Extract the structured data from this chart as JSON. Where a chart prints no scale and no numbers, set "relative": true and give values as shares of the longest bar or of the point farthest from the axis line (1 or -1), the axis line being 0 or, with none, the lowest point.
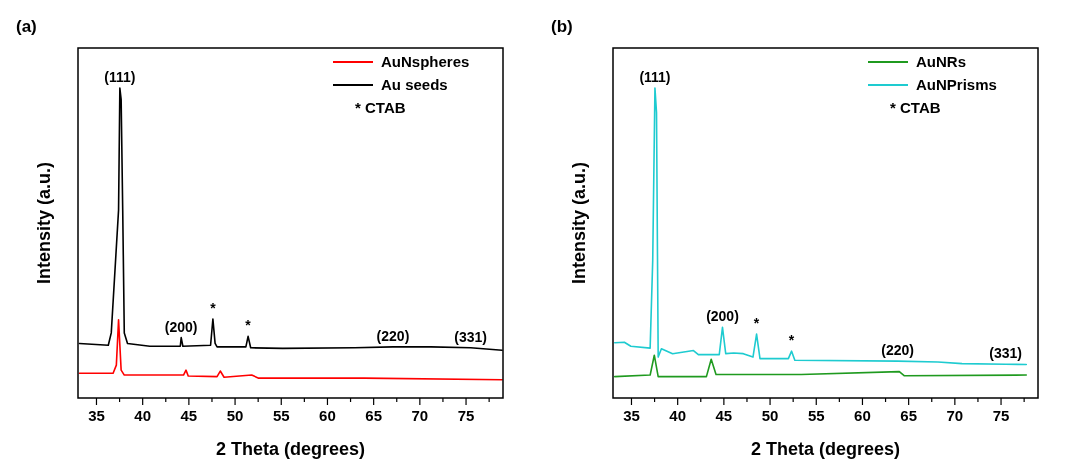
{
  "chart_data": [
    {
      "type": "line",
      "title": "(a)",
      "xlabel": "2 Theta (degrees)",
      "ylabel": "Intensity (a.u.)",
      "relative": true,
      "tick_labels": "x",
      "legend": "top right",
      "xlim": [
        33,
        79
      ],
      "xticks": [
        35,
        {
          "value": 37.5,
          "label": null
        },
        40,
        {
          "value": 42.5,
          "label": null
        },
        45,
        {
          "value": 47.5,
          "label": null
        },
        50,
        {
          "value": 52.5,
          "label": null
        },
        55,
        {
          "value": 57.5,
          "label": null
        },
        60,
        {
          "value": 62.5,
          "label": null
        },
        65,
        {
          "value": 67.5,
          "label": null
        },
        70,
        {
          "value": 72.5,
          "label": null
        },
        75,
        {
          "value": 77.5,
          "label": null
        }
      ],
      "series": [
        {
          "name": "AuNspheres",
          "color": "#ff0000",
          "x": [
            33.16,
            36.8,
            37.15,
            37.39,
            37.67,
            38.01,
            44.42,
            44.69,
            44.93,
            48.05,
            48.4,
            48.81,
            51.8,
            52.55,
            63.97,
            78.9
          ],
          "values": [
            0.08,
            0.08,
            0.106,
            0.252,
            0.09,
            0.074,
            0.074,
            0.09,
            0.071,
            0.069,
            0.087,
            0.067,
            0.074,
            0.064,
            0.064,
            0.059
          ]
        },
        {
          "name": "Au seeds",
          "color": "#000000",
          "x": [
            33.16,
            36.28,
            36.6,
            37.39,
            37.53,
            37.67,
            37.84,
            38.01,
            38.36,
            40.78,
            44.07,
            44.17,
            44.35,
            47.35,
            47.6,
            47.84,
            48.05,
            51.17,
            51.41,
            51.69,
            55.15,
            62.94,
            67.09,
            71.2,
            75.5,
            78.9
          ],
          "values": [
            0.176,
            0.17,
            0.21,
            0.606,
            1.0,
            0.963,
            0.606,
            0.21,
            0.176,
            0.167,
            0.167,
            0.195,
            0.167,
            0.17,
            0.255,
            0.176,
            0.165,
            0.165,
            0.199,
            0.162,
            0.16,
            0.162,
            0.165,
            0.165,
            0.162,
            0.154
          ]
        }
      ],
      "annotations": [
        {
          "text": "(111)",
          "x": 37.53,
          "y": 1.0
        },
        {
          "text": "(200)",
          "x": 44.17,
          "y": 0.195
        },
        {
          "text": "*",
          "x": 47.6,
          "y": 0.255
        },
        {
          "text": "*",
          "x": 51.41,
          "y": 0.199
        },
        {
          "text": "(220)",
          "x": 67.09,
          "y": 0.165
        },
        {
          "text": "(331)",
          "x": 75.5,
          "y": 0.162
        },
        "* CTAB"
      ]
    },
    {
      "type": "line",
      "title": "(b)",
      "xlabel": "2 Theta (degrees)",
      "ylabel": "Intensity (a.u.)",
      "relative": true,
      "tick_labels": "x",
      "legend": "top right",
      "xlim": [
        33,
        79
      ],
      "xticks": [
        35,
        {
          "value": 37.5,
          "label": null
        },
        40,
        {
          "value": 42.5,
          "label": null
        },
        45,
        {
          "value": 47.5,
          "label": null
        },
        50,
        {
          "value": 52.5,
          "label": null
        },
        55,
        {
          "value": 57.5,
          "label": null
        },
        60,
        {
          "value": 62.5,
          "label": null
        },
        65,
        {
          "value": 67.5,
          "label": null
        },
        70,
        {
          "value": 72.5,
          "label": null
        },
        75,
        {
          "value": 77.5,
          "label": null
        }
      ],
      "series": [
        {
          "name": "AuNRs",
          "color": "#1f9a1f",
          "x": [
            33.19,
            37.02,
            37.47,
            37.89,
            43.11,
            43.63,
            44.15,
            53.37,
            63.99,
            64.51,
            77.73
          ],
          "values": [
            0.069,
            0.074,
            0.138,
            0.069,
            0.069,
            0.125,
            0.076,
            0.076,
            0.085,
            0.072,
            0.074
          ]
        },
        {
          "name": "AuNPrisms",
          "color": "#1ecbd0",
          "x": [
            33.19,
            34.23,
            34.93,
            37.02,
            37.3,
            37.54,
            37.71,
            37.89,
            38.24,
            39.45,
            41.71,
            42.24,
            44.5,
            44.85,
            45.2,
            46.07,
            47.1,
            48.15,
            48.54,
            48.91,
            51.98,
            52.33,
            52.68,
            63.81,
            68.17,
            70.78,
            75.5,
            77.73
          ],
          "values": [
            0.178,
            0.18,
            0.167,
            0.161,
            0.444,
            1.0,
            0.921,
            0.132,
            0.159,
            0.143,
            0.153,
            0.14,
            0.14,
            0.228,
            0.143,
            0.145,
            0.143,
            0.132,
            0.206,
            0.127,
            0.127,
            0.151,
            0.122,
            0.119,
            0.116,
            0.111,
            0.109,
            0.108
          ]
        }
      ],
      "annotations": [
        {
          "text": "(111)",
          "x": 37.54,
          "y": 1.0
        },
        {
          "text": "(200)",
          "x": 44.85,
          "y": 0.228
        },
        {
          "text": "*",
          "x": 48.54,
          "y": 0.206
        },
        {
          "text": "*",
          "x": 52.33,
          "y": 0.151
        },
        {
          "text": "(220)",
          "x": 63.81,
          "y": 0.119
        },
        {
          "text": "(331)",
          "x": 75.5,
          "y": 0.109
        },
        "* CTAB"
      ]
    }
  ]
}
